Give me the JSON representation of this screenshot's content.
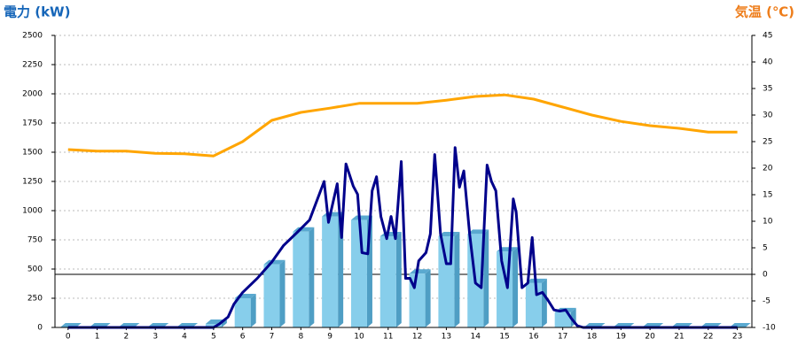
{
  "chart_data": {
    "type": "bar",
    "y_label": "電力 (kW)",
    "y2_label": "気温 (℃)",
    "xlim": [
      -0.45,
      23.5
    ],
    "xticks": [
      0,
      1,
      2,
      3,
      4,
      5,
      6,
      7,
      8,
      9,
      10,
      11,
      12,
      13,
      14,
      15,
      16,
      17,
      18,
      19,
      20,
      21,
      22,
      23
    ],
    "ylim": [
      0,
      2500
    ],
    "yticks": [
      0,
      250,
      500,
      750,
      1000,
      1250,
      1500,
      1750,
      2000,
      2250,
      2500
    ],
    "y2lim": [
      -10,
      45
    ],
    "y2ticks": [
      -10,
      -5,
      0,
      5,
      10,
      15,
      20,
      25,
      30,
      35,
      40,
      45
    ],
    "grid": true,
    "series": [
      {
        "type": "bar",
        "color": "#87ceeb",
        "x": [
          0,
          1,
          2,
          3,
          4,
          5,
          6,
          7,
          8,
          9,
          10,
          11,
          12,
          13,
          14,
          15,
          16,
          17,
          18,
          19,
          20,
          21,
          22,
          23
        ],
        "values": [
          0,
          0,
          0,
          0,
          0,
          30,
          250,
          540,
          820,
          950,
          920,
          780,
          460,
          780,
          800,
          650,
          380,
          130,
          0,
          0,
          0,
          0,
          0,
          0
        ]
      },
      {
        "type": "line",
        "color": "#00008b",
        "x": [
          0,
          5,
          5.2,
          5.5,
          5.7,
          6,
          6.5,
          7,
          7.4,
          7.9,
          8.3,
          8.8,
          8.95,
          9.25,
          9.4,
          9.55,
          9.8,
          9.95,
          10.1,
          10.3,
          10.45,
          10.6,
          10.75,
          10.95,
          11.1,
          11.25,
          11.45,
          11.6,
          11.75,
          11.9,
          12.05,
          12.3,
          12.45,
          12.6,
          12.8,
          13,
          13.15,
          13.3,
          13.45,
          13.6,
          13.8,
          14,
          14.2,
          14.4,
          14.55,
          14.7,
          14.9,
          15.1,
          15.3,
          15.4,
          15.6,
          15.8,
          15.95,
          16.1,
          16.3,
          16.5,
          16.7,
          16.9,
          17.1,
          17.3,
          17.5,
          17.7,
          23
        ],
        "values": [
          0,
          0,
          30,
          90,
          200,
          300,
          420,
          560,
          700,
          820,
          920,
          1250,
          900,
          1230,
          770,
          1400,
          1210,
          1140,
          640,
          630,
          1170,
          1290,
          950,
          760,
          950,
          760,
          1420,
          420,
          420,
          340,
          570,
          640,
          800,
          1480,
          800,
          545,
          545,
          1540,
          1200,
          1340,
          800,
          380,
          340,
          1390,
          1250,
          1170,
          570,
          340,
          1100,
          985,
          340,
          380,
          770,
          280,
          300,
          230,
          150,
          140,
          150,
          75,
          15,
          0,
          0
        ]
      },
      {
        "type": "line",
        "axis": "y2",
        "color": "#ffa500",
        "x": [
          0,
          1,
          2,
          3,
          4,
          5,
          6,
          7,
          8,
          9,
          10,
          11,
          12,
          13,
          14,
          15,
          16,
          17,
          18,
          19,
          20,
          21,
          22,
          23
        ],
        "values": [
          23.5,
          23.2,
          23.2,
          22.8,
          22.7,
          22.3,
          25,
          29,
          30.5,
          31.3,
          32.2,
          32.2,
          32.2,
          32.8,
          33.5,
          33.8,
          33,
          31.5,
          30,
          28.8,
          28,
          27.5,
          26.8,
          26.8
        ]
      }
    ]
  }
}
